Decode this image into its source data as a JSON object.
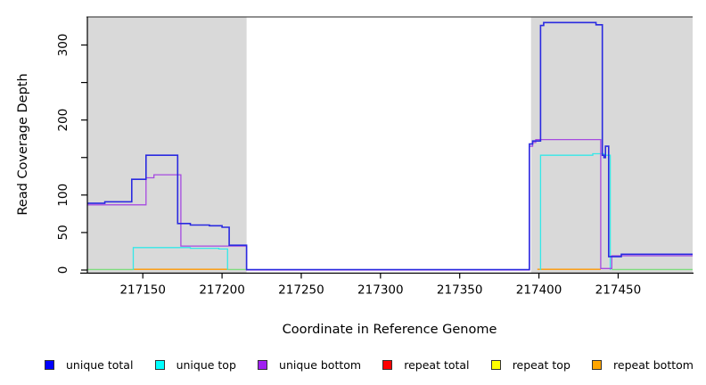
{
  "chart_data": {
    "type": "line",
    "title": "",
    "xlabel": "Coordinate in Reference Genome",
    "ylabel": "Read Coverage Depth",
    "xlim": [
      217115,
      217497
    ],
    "ylim": [
      0,
      337
    ],
    "grid": false,
    "legend_position": "bottom",
    "x_ticks": [
      217150,
      217200,
      217250,
      217300,
      217350,
      217400,
      217450
    ],
    "y_ticks": [
      {
        "value": 0,
        "label": "0"
      },
      {
        "value": 50,
        "label": "50"
      },
      {
        "value": 100,
        "label": "100"
      },
      {
        "value": 150,
        "label": ""
      },
      {
        "value": 200,
        "label": "200"
      },
      {
        "value": 250,
        "label": ""
      },
      {
        "value": 300,
        "label": "300"
      }
    ],
    "background_regions": [
      {
        "name": "shaded-left",
        "x_start": 217115,
        "x_end": 217215.5,
        "color": "#d9d9d9"
      },
      {
        "name": "shaded-right",
        "x_start": 217395,
        "x_end": 217497,
        "color": "#d9d9d9"
      }
    ],
    "baseline_overlap": {
      "note": "repeat-top (yellow) and unique-top (cyan) both at depth 0 blend to pale green",
      "color": "#7fdc7f",
      "value": 0.7,
      "segments": [
        [
          217115,
          217144
        ],
        [
          217204,
          217215.5
        ],
        [
          217446,
          217497
        ]
      ]
    },
    "series": [
      {
        "name": "repeat bottom",
        "color": "#ff9800",
        "segments": [
          [
            [
              217144,
              1
            ],
            [
              217204,
              1
            ]
          ],
          [
            [
              217399,
              1
            ],
            [
              217439,
              1
            ]
          ]
        ]
      },
      {
        "name": "unique top",
        "color": "#35e8e8",
        "segments": [
          [
            [
              217144,
              0
            ],
            [
              217144,
              30
            ],
            [
              217180,
              30
            ],
            [
              217180,
              29
            ],
            [
              217198,
              29
            ],
            [
              217198,
              28
            ],
            [
              217203.5,
              28
            ],
            [
              217203.5,
              0
            ]
          ],
          [
            [
              217401,
              0
            ],
            [
              217401,
              153
            ],
            [
              217434,
              153
            ],
            [
              217434,
              155
            ],
            [
              217441,
              155
            ],
            [
              217441,
              153
            ],
            [
              217445,
              153
            ],
            [
              217445,
              0
            ]
          ]
        ]
      },
      {
        "name": "repeat total",
        "color": "#ff0000",
        "segments": []
      },
      {
        "name": "repeat top",
        "color": "#ffff00",
        "segments": []
      },
      {
        "name": "unique bottom",
        "color": "#a64ae0",
        "segments": [
          [
            [
              217115,
              87
            ],
            [
              217152,
              87
            ],
            [
              217152,
              123
            ],
            [
              217157,
              123
            ],
            [
              217157,
              127
            ],
            [
              217174,
              127
            ],
            [
              217174,
              32
            ],
            [
              217215.5,
              32
            ],
            [
              217215.5,
              0
            ],
            [
              217394,
              0
            ],
            [
              217394,
              165
            ],
            [
              217396,
              165
            ],
            [
              217396,
              170
            ],
            [
              217398,
              170
            ],
            [
              217398,
              174
            ],
            [
              217439,
              174
            ],
            [
              217439,
              2
            ],
            [
              217446,
              2
            ],
            [
              217446,
              19
            ],
            [
              217497,
              19
            ]
          ]
        ]
      },
      {
        "name": "unique total",
        "color": "#2a2ae0",
        "segments": [
          [
            [
              217115,
              89
            ],
            [
              217126,
              89
            ],
            [
              217126,
              91
            ],
            [
              217143,
              91
            ],
            [
              217143,
              121
            ],
            [
              217152,
              121
            ],
            [
              217152,
              153
            ],
            [
              217172,
              153
            ],
            [
              217172,
              62
            ],
            [
              217180,
              62
            ],
            [
              217180,
              60
            ],
            [
              217192,
              60
            ],
            [
              217192,
              59
            ],
            [
              217200,
              59
            ],
            [
              217200,
              57
            ],
            [
              217204.5,
              57
            ],
            [
              217204.5,
              33
            ],
            [
              217215.5,
              33
            ],
            [
              217215.5,
              0.6
            ],
            [
              217394,
              0.6
            ],
            [
              217394,
              168
            ],
            [
              217396,
              168
            ],
            [
              217396,
              172
            ],
            [
              217401,
              172
            ],
            [
              217401,
              326
            ],
            [
              217403,
              326
            ],
            [
              217403,
              330
            ],
            [
              217436,
              330
            ],
            [
              217436,
              327
            ],
            [
              217440,
              327
            ],
            [
              217440,
              153
            ],
            [
              217441,
              153
            ],
            [
              217441,
              150
            ],
            [
              217442,
              150
            ],
            [
              217442,
              165
            ],
            [
              217444,
              165
            ],
            [
              217444,
              18
            ],
            [
              217452,
              18
            ],
            [
              217452,
              21
            ],
            [
              217497,
              21
            ]
          ]
        ]
      }
    ],
    "legend": [
      {
        "label": "unique total",
        "color": "#0000ff"
      },
      {
        "label": "unique top",
        "color": "#00ffff"
      },
      {
        "label": "unique bottom",
        "color": "#a020f0"
      },
      {
        "label": "repeat total",
        "color": "#ff0000"
      },
      {
        "label": "repeat top",
        "color": "#ffff00"
      },
      {
        "label": "repeat bottom",
        "color": "#ffa500"
      }
    ]
  }
}
